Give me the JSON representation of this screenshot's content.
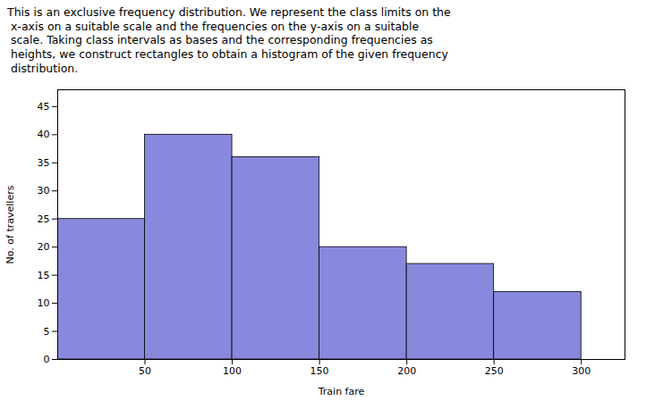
{
  "chart_data": {
    "type": "histogram",
    "annotation": "This is an exclusive frequency distribution. We represent the class limits on the\n x-axis on a suitable scale and the frequencies on the y-axis on a suitable\n scale. Taking class intervals as bases and the corresponding frequencies as\n heights, we construct rectangles to obtain a histogram of the given frequency\n distribution.",
    "bins": [
      0,
      50,
      100,
      150,
      200,
      250,
      300
    ],
    "values": [
      25,
      40,
      36,
      20,
      17,
      12
    ],
    "color": "#8888dd",
    "xlabel": "Train fare",
    "ylabel": "No. of travellers",
    "xlim": [
      0,
      325
    ],
    "ylim": [
      0,
      48
    ],
    "xticks": [
      50,
      100,
      150,
      200,
      250,
      300
    ],
    "yticks": [
      0,
      5,
      10,
      15,
      20,
      25,
      30,
      35,
      40,
      45
    ],
    "grid": false
  }
}
